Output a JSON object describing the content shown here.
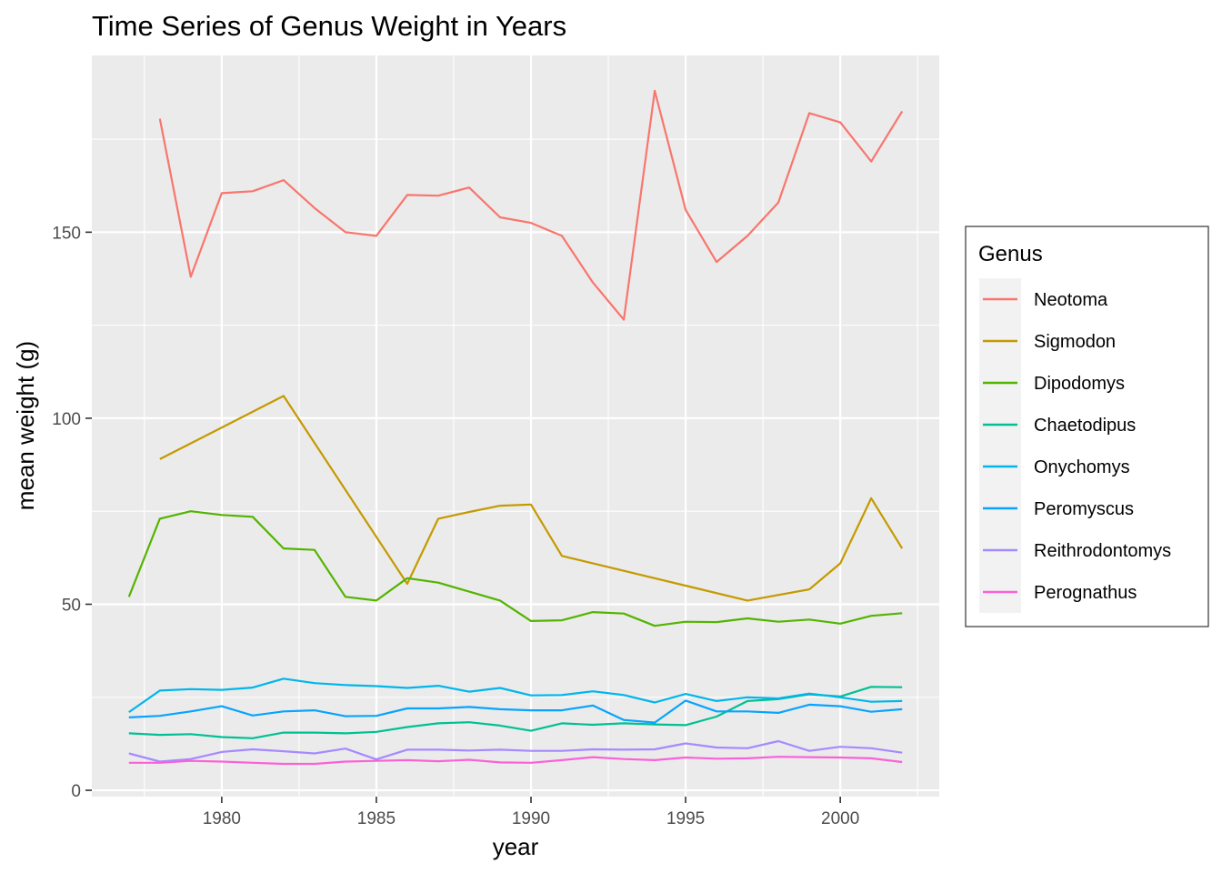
{
  "chart_data": {
    "type": "line",
    "title": "Time Series of Genus Weight in Years",
    "xlabel": "year",
    "ylabel": "mean weight (g)",
    "xlim": [
      1976.2,
      1002.8
    ],
    "ylim": [
      -1.7,
      197.5
    ],
    "x_ticks": [
      1980,
      1985,
      1990,
      1995,
      2000
    ],
    "y_ticks": [
      0,
      50,
      100,
      150
    ],
    "grid": true,
    "legend": {
      "title": "Genus",
      "position": "right"
    },
    "series": [
      {
        "name": "Neotoma",
        "color": "#F8766D",
        "x": [
          1978,
          1979,
          1980,
          1981,
          1982,
          1983,
          1984,
          1985,
          1986,
          1987,
          1988,
          1989,
          1990,
          1991,
          1992,
          1993,
          1994,
          1995,
          1996,
          1997,
          1998,
          1999,
          2000,
          2001,
          2002
        ],
        "y": [
          180.5,
          138.0,
          160.5,
          161.0,
          164.0,
          156.5,
          150.0,
          149.0,
          160.0,
          159.8,
          162.0,
          154.0,
          152.5,
          149.0,
          136.5,
          126.5,
          188.0,
          156.0,
          142.0,
          149.0,
          158.0,
          182.0,
          179.5,
          169.0,
          182.5
        ]
      },
      {
        "name": "Sigmodon",
        "color": "#C49A00",
        "x": [
          1978,
          1982,
          1986,
          1987,
          1988,
          1989,
          1990,
          1991,
          1997,
          1999,
          2000,
          2001,
          2002
        ],
        "y": [
          89.0,
          106.0,
          55.5,
          73.0,
          74.8,
          76.5,
          76.8,
          63.0,
          51.0,
          54.0,
          61.0,
          78.5,
          65.0
        ]
      },
      {
        "name": "Dipodomys",
        "color": "#53B400",
        "x": [
          1977,
          1978,
          1979,
          1980,
          1981,
          1982,
          1983,
          1984,
          1985,
          1986,
          1987,
          1988,
          1989,
          1990,
          1991,
          1992,
          1993,
          1994,
          1995,
          1996,
          1997,
          1998,
          1999,
          2000,
          2001,
          2002
        ],
        "y": [
          52.0,
          73.0,
          75.0,
          74.0,
          73.5,
          65.0,
          64.6,
          52.0,
          51.0,
          57.0,
          55.8,
          53.4,
          51.0,
          45.5,
          45.7,
          47.9,
          47.5,
          44.2,
          45.3,
          45.2,
          46.2,
          45.3,
          45.9,
          44.8,
          46.9,
          47.6
        ]
      },
      {
        "name": "Chaetodipus",
        "color": "#00C094",
        "x": [
          1977,
          1978,
          1979,
          1980,
          1981,
          1982,
          1983,
          1984,
          1985,
          1986,
          1987,
          1988,
          1989,
          1990,
          1991,
          1992,
          1993,
          1994,
          1995,
          1996,
          1997,
          1998,
          1999,
          2000,
          2001,
          2002
        ],
        "y": [
          15.3,
          14.9,
          15.1,
          14.3,
          14.0,
          15.5,
          15.5,
          15.3,
          15.7,
          17.0,
          18.0,
          18.3,
          17.4,
          16.0,
          18.0,
          17.6,
          18.0,
          17.7,
          17.5,
          19.8,
          24.0,
          24.5,
          25.8,
          25.2,
          27.8,
          27.7
        ]
      },
      {
        "name": "Onychomys",
        "color": "#00B6EB",
        "x": [
          1977,
          1978,
          1979,
          1980,
          1981,
          1982,
          1983,
          1984,
          1985,
          1986,
          1987,
          1988,
          1989,
          1990,
          1991,
          1992,
          1993,
          1994,
          1995,
          1996,
          1997,
          1998,
          1999,
          2000,
          2001,
          2002
        ],
        "y": [
          21.0,
          26.8,
          27.2,
          27.0,
          27.6,
          30.0,
          28.8,
          28.3,
          28.0,
          27.5,
          28.1,
          26.5,
          27.5,
          25.5,
          25.6,
          26.6,
          25.6,
          23.6,
          25.9,
          24.0,
          25.0,
          24.7,
          26.0,
          25.0,
          23.8,
          24.0
        ]
      },
      {
        "name": "Peromyscus",
        "color": "#06A4FF",
        "x": [
          1977,
          1978,
          1979,
          1980,
          1981,
          1982,
          1983,
          1984,
          1985,
          1986,
          1987,
          1988,
          1989,
          1990,
          1991,
          1992,
          1993,
          1994,
          1995,
          1996,
          1997,
          1998,
          1999,
          2000,
          2001,
          2002
        ],
        "y": [
          19.6,
          20.0,
          21.2,
          22.6,
          20.1,
          21.2,
          21.5,
          19.9,
          20.0,
          22.0,
          22.0,
          22.4,
          21.8,
          21.5,
          21.5,
          22.8,
          18.9,
          18.2,
          24.1,
          21.2,
          21.2,
          20.8,
          23.0,
          22.6,
          21.1,
          21.8
        ]
      },
      {
        "name": "Reithrodontomys",
        "color": "#A58AFF",
        "x": [
          1977,
          1978,
          1979,
          1980,
          1981,
          1982,
          1983,
          1984,
          1985,
          1986,
          1987,
          1988,
          1989,
          1990,
          1991,
          1992,
          1993,
          1994,
          1995,
          1996,
          1997,
          1998,
          1999,
          2000,
          2001,
          2002
        ],
        "y": [
          9.9,
          7.7,
          8.4,
          10.3,
          11.0,
          10.5,
          9.9,
          11.2,
          8.3,
          10.9,
          10.9,
          10.7,
          10.9,
          10.6,
          10.6,
          11.0,
          10.9,
          11.0,
          12.6,
          11.5,
          11.3,
          13.2,
          10.6,
          11.7,
          11.3,
          10.1
        ]
      },
      {
        "name": "Perognathus",
        "color": "#FB61D7",
        "x": [
          1977,
          1978,
          1979,
          1980,
          1981,
          1982,
          1983,
          1984,
          1985,
          1986,
          1987,
          1988,
          1989,
          1990,
          1991,
          1992,
          1993,
          1994,
          1995,
          1996,
          1997,
          1998,
          1999,
          2000,
          2001,
          2002
        ],
        "y": [
          7.4,
          7.4,
          7.9,
          7.7,
          7.4,
          7.1,
          7.1,
          7.7,
          7.9,
          8.1,
          7.8,
          8.2,
          7.5,
          7.4,
          8.1,
          8.9,
          8.4,
          8.1,
          8.8,
          8.5,
          8.6,
          9.0,
          8.9,
          8.8,
          8.6,
          7.6
        ]
      }
    ]
  },
  "colors": {
    "panel_background": "#EBEBEB",
    "grid_major": "#FFFFFF",
    "tick_label": "#4D4D4D",
    "legend_key_background": "#F2F2F2"
  }
}
